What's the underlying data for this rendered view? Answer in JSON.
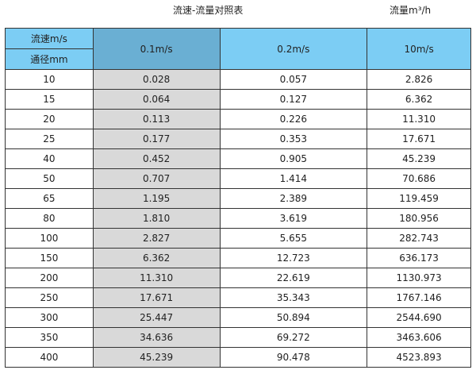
{
  "title": "流速-流量对照表",
  "unit": "流量m³/h",
  "header": {
    "velocity_label": "流速m/s",
    "diameter_label": "通径mm",
    "columns": [
      "0.1m/s",
      "0.2m/s",
      "10m/s"
    ]
  },
  "colors": {
    "header": "#7ccdf4",
    "selected_header": "#6aafd3",
    "selected_column": "#d9d9d9"
  },
  "rows": [
    [
      "10",
      "0.028",
      "0.057",
      "2.826"
    ],
    [
      "15",
      "0.064",
      "0.127",
      "6.362"
    ],
    [
      "20",
      "0.113",
      "0.226",
      "11.310"
    ],
    [
      "25",
      "0.177",
      "0.353",
      "17.671"
    ],
    [
      "40",
      "0.452",
      "0.905",
      "45.239"
    ],
    [
      "50",
      "0.707",
      "1.414",
      "70.686"
    ],
    [
      "65",
      "1.195",
      "2.389",
      "119.459"
    ],
    [
      "80",
      "1.810",
      "3.619",
      "180.956"
    ],
    [
      "100",
      "2.827",
      "5.655",
      "282.743"
    ],
    [
      "150",
      "6.362",
      "12.723",
      "636.173"
    ],
    [
      "200",
      "11.310",
      "22.619",
      "1130.973"
    ],
    [
      "250",
      "17.671",
      "35.343",
      "1767.146"
    ],
    [
      "300",
      "25.447",
      "50.894",
      "2544.690"
    ],
    [
      "350",
      "34.636",
      "69.272",
      "3463.606"
    ],
    [
      "400",
      "45.239",
      "90.478",
      "4523.893"
    ]
  ]
}
